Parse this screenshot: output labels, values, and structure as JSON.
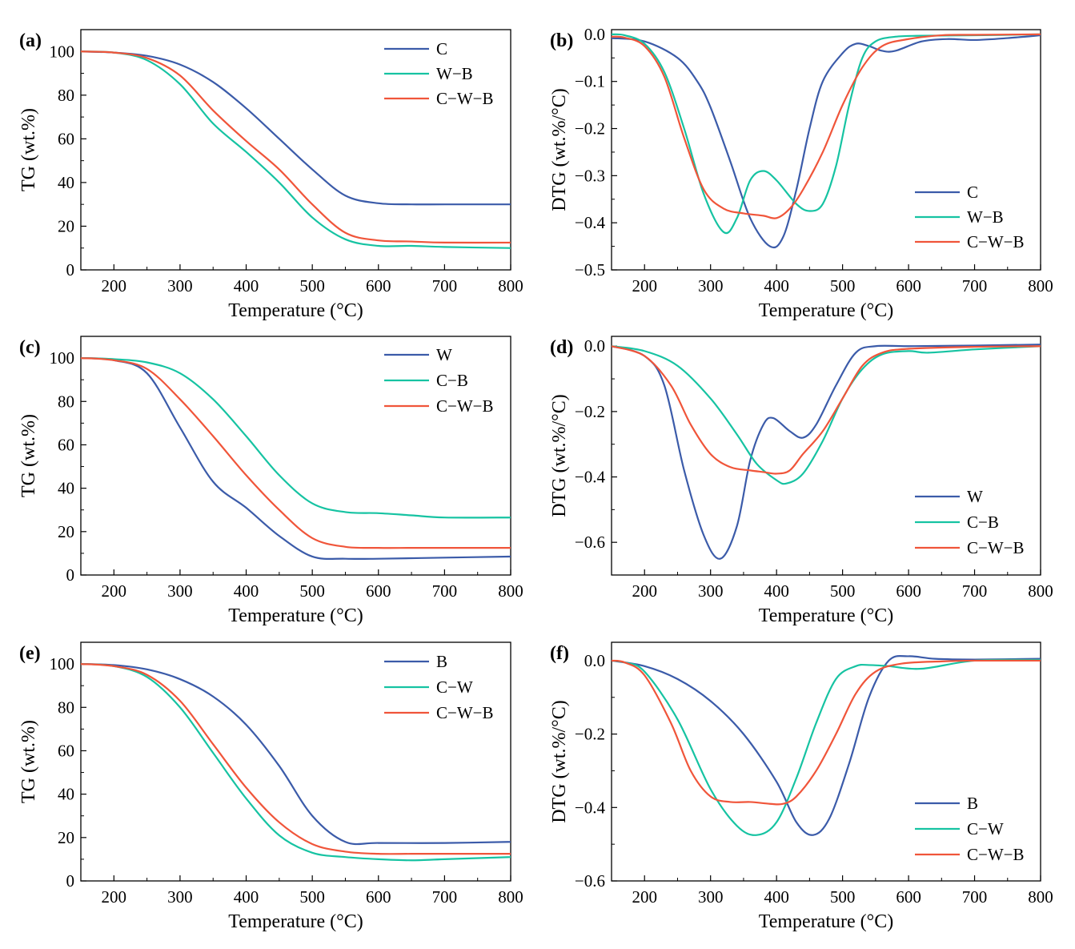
{
  "figure": {
    "panels": [
      "a",
      "b",
      "c",
      "d",
      "e",
      "f"
    ]
  },
  "chart_data": [
    {
      "panel": "(a)",
      "type": "line",
      "xlabel": "Temperature (°C)",
      "ylabel": "TG (wt.%)",
      "xlim": [
        150,
        800
      ],
      "ylim": [
        0,
        110
      ],
      "xticks": [
        200,
        300,
        400,
        500,
        600,
        700,
        800
      ],
      "yticks": [
        0,
        20,
        40,
        60,
        80,
        100
      ],
      "legend_position": "top-right",
      "colors": {
        "C": "#3b5ba9",
        "W-B": "#16c3a2",
        "C-W-B": "#f0553a"
      },
      "series": [
        {
          "name": "C",
          "color": "#3b5ba9",
          "x": [
            150,
            200,
            250,
            300,
            350,
            400,
            450,
            500,
            550,
            600,
            650,
            700,
            800
          ],
          "y": [
            100,
            99.5,
            98,
            94,
            86,
            74,
            60,
            46,
            34,
            30.5,
            30,
            30,
            30
          ]
        },
        {
          "name": "W−B",
          "color": "#16c3a2",
          "x": [
            150,
            200,
            250,
            300,
            350,
            400,
            450,
            500,
            550,
            600,
            650,
            700,
            800
          ],
          "y": [
            100,
            99.5,
            96,
            85,
            67,
            54,
            40,
            24,
            14,
            11,
            11,
            10.5,
            10
          ]
        },
        {
          "name": "C−W−B",
          "color": "#f0553a",
          "x": [
            150,
            200,
            250,
            300,
            350,
            400,
            450,
            500,
            550,
            600,
            650,
            700,
            800
          ],
          "y": [
            100,
            99.5,
            97,
            89,
            73,
            59,
            46,
            30,
            17,
            13.5,
            13,
            12.5,
            12.5
          ]
        }
      ]
    },
    {
      "panel": "(b)",
      "type": "line",
      "xlabel": "Temperature (°C)",
      "ylabel": "DTG (wt.%/°C)",
      "xlim": [
        150,
        800
      ],
      "ylim": [
        -0.5,
        0.01
      ],
      "xticks": [
        200,
        300,
        400,
        500,
        600,
        700,
        800
      ],
      "yticks": [
        "-0.5",
        "-0.4",
        "-0.3",
        "-0.2",
        "-0.1",
        "0.0"
      ],
      "legend_position": "bottom-right",
      "series": [
        {
          "name": "C",
          "color": "#3b5ba9",
          "x": [
            150,
            200,
            250,
            280,
            300,
            330,
            360,
            390,
            410,
            430,
            450,
            470,
            500,
            520,
            540,
            560,
            580,
            620,
            660,
            700,
            750,
            800
          ],
          "y": [
            -0.008,
            -0.015,
            -0.05,
            -0.1,
            -0.155,
            -0.27,
            -0.39,
            -0.45,
            -0.43,
            -0.33,
            -0.2,
            -0.1,
            -0.04,
            -0.02,
            -0.025,
            -0.035,
            -0.035,
            -0.015,
            -0.01,
            -0.012,
            -0.008,
            -0.002
          ]
        },
        {
          "name": "W−B",
          "color": "#16c3a2",
          "x": [
            150,
            170,
            200,
            230,
            260,
            290,
            320,
            340,
            360,
            380,
            400,
            430,
            450,
            470,
            490,
            510,
            530,
            550,
            580,
            620,
            700,
            800
          ],
          "y": [
            0,
            -0.002,
            -0.02,
            -0.08,
            -0.2,
            -0.34,
            -0.42,
            -0.39,
            -0.31,
            -0.29,
            -0.31,
            -0.36,
            -0.375,
            -0.36,
            -0.28,
            -0.15,
            -0.05,
            -0.015,
            -0.005,
            -0.003,
            -0.002,
            0
          ]
        },
        {
          "name": "C−W−B",
          "color": "#f0553a",
          "x": [
            150,
            170,
            200,
            230,
            260,
            290,
            320,
            350,
            380,
            400,
            420,
            440,
            470,
            500,
            530,
            560,
            600,
            650,
            700,
            800
          ],
          "y": [
            -0.005,
            -0.007,
            -0.025,
            -0.09,
            -0.22,
            -0.33,
            -0.37,
            -0.38,
            -0.385,
            -0.39,
            -0.37,
            -0.33,
            -0.25,
            -0.15,
            -0.07,
            -0.025,
            -0.01,
            -0.002,
            -0.001,
            0
          ]
        }
      ]
    },
    {
      "panel": "(c)",
      "type": "line",
      "xlabel": "Temperature (°C)",
      "ylabel": "TG (wt.%)",
      "xlim": [
        150,
        800
      ],
      "ylim": [
        0,
        110
      ],
      "xticks": [
        200,
        300,
        400,
        500,
        600,
        700,
        800
      ],
      "yticks": [
        0,
        20,
        40,
        60,
        80,
        100
      ],
      "legend_position": "top-right",
      "series": [
        {
          "name": "W",
          "color": "#3b5ba9",
          "x": [
            150,
            200,
            250,
            300,
            350,
            400,
            450,
            500,
            550,
            600,
            700,
            800
          ],
          "y": [
            100,
            99,
            93,
            68,
            43,
            31,
            18,
            8.5,
            7.5,
            7.5,
            8,
            8.5
          ]
        },
        {
          "name": "C−B",
          "color": "#16c3a2",
          "x": [
            150,
            200,
            250,
            300,
            350,
            400,
            450,
            500,
            550,
            600,
            650,
            700,
            800
          ],
          "y": [
            100,
            99.5,
            98,
            93,
            81,
            64,
            46,
            33,
            29,
            28.5,
            27.5,
            26.5,
            26.5
          ]
        },
        {
          "name": "C−W−B",
          "color": "#f0553a",
          "x": [
            150,
            200,
            250,
            300,
            350,
            400,
            450,
            500,
            550,
            600,
            650,
            700,
            800
          ],
          "y": [
            100,
            99,
            95,
            81,
            64,
            46,
            30,
            17,
            13,
            12.5,
            12.5,
            12.5,
            12.5
          ]
        }
      ]
    },
    {
      "panel": "(d)",
      "type": "line",
      "xlabel": "Temperature (°C)",
      "ylabel": "DTG (wt.%/°C)",
      "xlim": [
        150,
        800
      ],
      "ylim": [
        -0.7,
        0.03
      ],
      "xticks": [
        200,
        300,
        400,
        500,
        600,
        700,
        800
      ],
      "yticks": [
        "-0.6",
        "-0.4",
        "-0.2",
        "0.0"
      ],
      "legend_position": "bottom-right",
      "series": [
        {
          "name": "W",
          "color": "#3b5ba9",
          "x": [
            150,
            200,
            230,
            260,
            290,
            315,
            340,
            360,
            380,
            395,
            420,
            440,
            460,
            490,
            520,
            550,
            600,
            700,
            800
          ],
          "y": [
            0,
            -0.03,
            -0.12,
            -0.38,
            -0.58,
            -0.65,
            -0.55,
            -0.35,
            -0.24,
            -0.22,
            -0.26,
            -0.28,
            -0.24,
            -0.12,
            -0.02,
            0,
            0,
            0.002,
            0.005
          ]
        },
        {
          "name": "C−B",
          "color": "#16c3a2",
          "x": [
            150,
            200,
            250,
            300,
            340,
            370,
            400,
            415,
            440,
            470,
            500,
            530,
            560,
            600,
            630,
            700,
            800
          ],
          "y": [
            0,
            -0.015,
            -0.06,
            -0.16,
            -0.27,
            -0.36,
            -0.41,
            -0.42,
            -0.39,
            -0.29,
            -0.16,
            -0.07,
            -0.025,
            -0.015,
            -0.02,
            -0.01,
            0
          ]
        },
        {
          "name": "C−W−B",
          "color": "#f0553a",
          "x": [
            150,
            200,
            240,
            270,
            300,
            330,
            360,
            380,
            400,
            420,
            440,
            470,
            500,
            530,
            560,
            600,
            700,
            800
          ],
          "y": [
            0,
            -0.03,
            -0.12,
            -0.24,
            -0.33,
            -0.37,
            -0.38,
            -0.385,
            -0.39,
            -0.38,
            -0.33,
            -0.26,
            -0.16,
            -0.06,
            -0.02,
            -0.008,
            -0.002,
            0
          ]
        }
      ]
    },
    {
      "panel": "(e)",
      "type": "line",
      "xlabel": "Temperature (°C)",
      "ylabel": "TG (wt.%)",
      "xlim": [
        150,
        800
      ],
      "ylim": [
        0,
        110
      ],
      "xticks": [
        200,
        300,
        400,
        500,
        600,
        700,
        800
      ],
      "yticks": [
        0,
        20,
        40,
        60,
        80,
        100
      ],
      "legend_position": "top-right",
      "series": [
        {
          "name": "B",
          "color": "#3b5ba9",
          "x": [
            150,
            200,
            250,
            300,
            350,
            400,
            450,
            500,
            550,
            600,
            700,
            800
          ],
          "y": [
            100,
            99.5,
            97.5,
            93,
            85,
            72,
            53,
            30,
            18,
            17.5,
            17.5,
            18
          ]
        },
        {
          "name": "C−W",
          "color": "#16c3a2",
          "x": [
            150,
            200,
            250,
            300,
            350,
            400,
            450,
            500,
            550,
            600,
            650,
            700,
            800
          ],
          "y": [
            100,
            99,
            94,
            80,
            59,
            38,
            21,
            13,
            11,
            10,
            9.5,
            10,
            11
          ]
        },
        {
          "name": "C−W−B",
          "color": "#f0553a",
          "x": [
            150,
            200,
            250,
            300,
            350,
            400,
            450,
            500,
            550,
            600,
            650,
            700,
            800
          ],
          "y": [
            100,
            99,
            95,
            83,
            63,
            43,
            27,
            17,
            13.5,
            12.5,
            12.5,
            12.5,
            12.5
          ]
        }
      ]
    },
    {
      "panel": "(f)",
      "type": "line",
      "xlabel": "Temperature (°C)",
      "ylabel": "DTG (wt.%/°C)",
      "xlim": [
        150,
        800
      ],
      "ylim": [
        -0.6,
        0.05
      ],
      "xticks": [
        200,
        300,
        400,
        500,
        600,
        700,
        800
      ],
      "yticks": [
        "-0.6",
        "-0.4",
        "-0.2",
        "0.0"
      ],
      "legend_position": "bottom-right",
      "series": [
        {
          "name": "B",
          "color": "#3b5ba9",
          "x": [
            150,
            200,
            250,
            300,
            350,
            400,
            430,
            455,
            480,
            510,
            540,
            570,
            600,
            640,
            700,
            800
          ],
          "y": [
            0,
            -0.015,
            -0.05,
            -0.11,
            -0.2,
            -0.33,
            -0.44,
            -0.475,
            -0.43,
            -0.28,
            -0.1,
            0,
            0.012,
            0.005,
            0.003,
            0.005
          ]
        },
        {
          "name": "C−W",
          "color": "#16c3a2",
          "x": [
            150,
            170,
            200,
            250,
            300,
            340,
            370,
            400,
            430,
            460,
            490,
            520,
            540,
            570,
            620,
            700,
            800
          ],
          "y": [
            0,
            -0.005,
            -0.03,
            -0.16,
            -0.35,
            -0.45,
            -0.475,
            -0.44,
            -0.32,
            -0.17,
            -0.05,
            -0.015,
            -0.012,
            -0.015,
            -0.022,
            0,
            0.002
          ]
        },
        {
          "name": "C−W−B",
          "color": "#f0553a",
          "x": [
            150,
            170,
            200,
            240,
            270,
            300,
            330,
            360,
            390,
            410,
            430,
            460,
            490,
            520,
            550,
            590,
            650,
            700,
            800
          ],
          "y": [
            0,
            -0.005,
            -0.04,
            -0.17,
            -0.3,
            -0.37,
            -0.385,
            -0.385,
            -0.39,
            -0.39,
            -0.37,
            -0.3,
            -0.2,
            -0.09,
            -0.03,
            -0.008,
            -0.002,
            0,
            0
          ]
        }
      ]
    }
  ]
}
